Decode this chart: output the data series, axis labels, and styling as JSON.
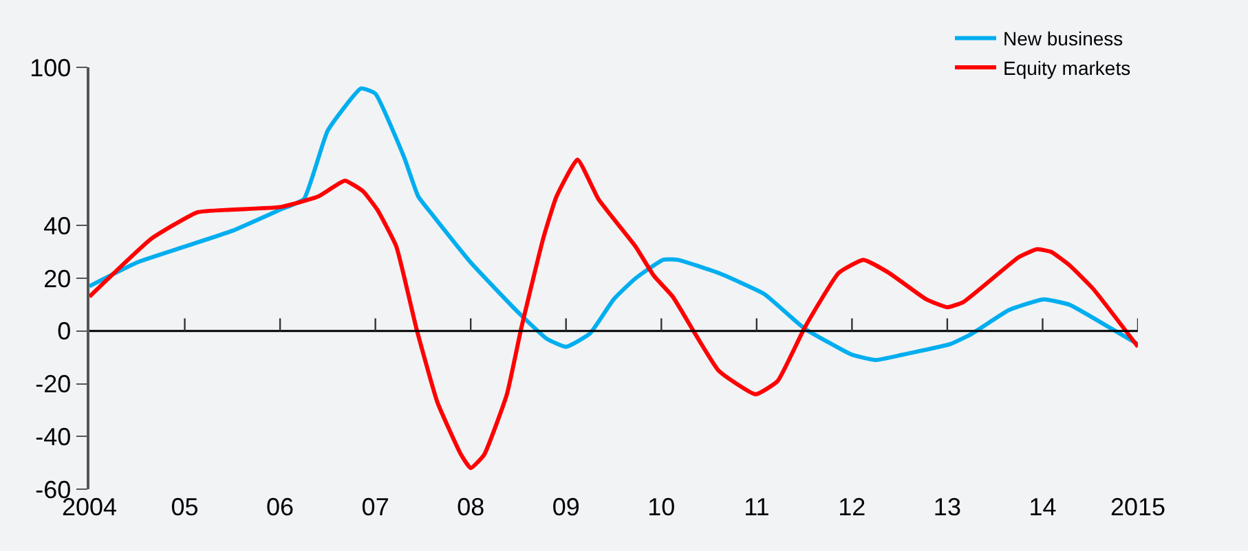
{
  "chart_data": {
    "type": "line",
    "xlim": [
      2004,
      2015
    ],
    "xticks": [
      2004,
      {
        "value": 2005,
        "label": "05"
      },
      {
        "value": 2006,
        "label": "06"
      },
      {
        "value": 2007,
        "label": "07"
      },
      {
        "value": 2008,
        "label": "08"
      },
      {
        "value": 2009,
        "label": "09"
      },
      {
        "value": 2010,
        "label": "10"
      },
      {
        "value": 2011,
        "label": "11"
      },
      {
        "value": 2012,
        "label": "12"
      },
      {
        "value": 2013,
        "label": "13"
      },
      {
        "value": 2014,
        "label": "14"
      },
      2015
    ],
    "ylim": [
      -60,
      100
    ],
    "yticks": [
      -60,
      -40,
      -20,
      0,
      20,
      40,
      100
    ],
    "grid": false,
    "ref_lines": [
      {
        "axis": "y",
        "value": 0,
        "color": "#000000"
      }
    ],
    "legend": "top right",
    "marker": "none",
    "line_style": "solid",
    "series": [
      {
        "name": "New business",
        "color": "#00aeef",
        "x": [
          2004,
          2004.5,
          2005,
          2005.5,
          2006,
          2006.25,
          2006.5,
          2006.85,
          2007,
          2007.3,
          2007.45,
          2007.6,
          2008,
          2008.5,
          2008.8,
          2009,
          2009.25,
          2009.5,
          2009.73,
          2010.02,
          2010.17,
          2010.6,
          2011.08,
          2011.5,
          2012,
          2012.25,
          2012.53,
          2013.03,
          2013.26,
          2013.65,
          2014.01,
          2014.28,
          2014.67,
          2015
        ],
        "values": [
          17,
          26,
          32,
          38,
          46,
          50,
          76,
          92,
          90,
          66,
          51,
          44,
          26,
          7,
          -3,
          -6,
          -1,
          12,
          20,
          27,
          27,
          22,
          14,
          1,
          -9,
          -11,
          -9,
          -5,
          -1,
          8,
          12,
          10,
          2,
          -5
        ]
      },
      {
        "name": "Equity markets",
        "color": "#ff0000",
        "x": [
          2004,
          2004.65,
          2005.13,
          2005.48,
          2006,
          2006.4,
          2006.68,
          2006.87,
          2007.02,
          2007.22,
          2007.43,
          2007.65,
          2007.9,
          2008,
          2008.14,
          2008.38,
          2008.53,
          2008.76,
          2008.9,
          2009.12,
          2009.34,
          2009.73,
          2009.92,
          2010.12,
          2010.6,
          2010.99,
          2011.22,
          2011.5,
          2011.86,
          2012.12,
          2012.39,
          2012.78,
          2013,
          2013.17,
          2013.75,
          2013.94,
          2014.09,
          2014.28,
          2014.53,
          2015
        ],
        "values": [
          13,
          35,
          45,
          46,
          47,
          51,
          57,
          53,
          46,
          32,
          1,
          -27,
          -47,
          -52,
          -47,
          -24,
          1,
          35,
          51,
          65,
          50,
          32,
          21,
          13,
          -15,
          -24,
          -19,
          1,
          22,
          27,
          22,
          12,
          9,
          11,
          28,
          31,
          30,
          25,
          16,
          -6
        ]
      }
    ]
  }
}
